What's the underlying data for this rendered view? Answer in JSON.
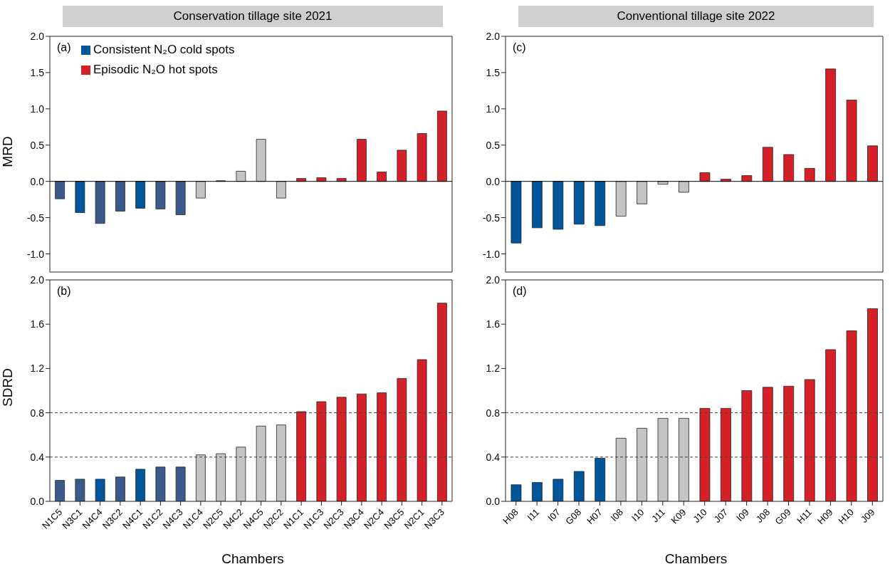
{
  "chart_data": [
    {
      "type": "bar",
      "title": "Conservation tillage site 2021",
      "ylabel": "MRD",
      "annotations": [
        "(a)"
      ],
      "legend": "top left",
      "stacked": true,
      "tick_labels": "y",
      "categories": [
        null,
        null,
        null,
        null,
        null,
        null,
        null,
        null,
        null,
        null,
        null,
        null,
        null,
        null,
        null,
        null,
        null,
        null,
        null,
        null
      ],
      "ylim": [
        -1.25,
        2.0
      ],
      "yticks": [
        {
          "value": -1,
          "label": "-1.0"
        },
        -0.5,
        {
          "value": 0,
          "label": "0.0"
        },
        0.5,
        {
          "value": 1,
          "label": "1.0"
        },
        1.5,
        {
          "value": 2,
          "label": "2.0"
        }
      ],
      "series": [
        {
          "name": "Consistent N₂O cold spots",
          "color": "#00559b",
          "colors": [
            "#3b5a8c",
            "#00559b",
            "#3b5a8c",
            "#3b5a8c",
            "#00559b",
            "#3b5a8c",
            "#3b5a8c",
            null,
            null,
            null,
            null,
            null,
            null,
            null,
            null,
            null,
            null,
            null,
            null,
            null
          ],
          "values": [
            -0.24,
            -0.43,
            -0.58,
            -0.41,
            -0.37,
            -0.38,
            -0.46,
            null,
            null,
            null,
            null,
            null,
            null,
            null,
            null,
            null,
            null,
            null,
            null,
            null
          ]
        },
        {
          "color": "#c4c4c4",
          "values": [
            null,
            null,
            null,
            null,
            null,
            null,
            null,
            -0.23,
            0.01,
            0.14,
            0.58,
            -0.23,
            null,
            null,
            null,
            null,
            null,
            null,
            null,
            null
          ]
        },
        {
          "name": "Episodic N₂O hot spots",
          "color": "#d62027",
          "values": [
            null,
            null,
            null,
            null,
            null,
            null,
            null,
            null,
            null,
            null,
            null,
            null,
            0.04,
            0.05,
            0.04,
            0.58,
            0.13,
            0.43,
            0.66,
            0.97
          ]
        }
      ]
    },
    {
      "type": "bar",
      "xlabel": "Chambers",
      "ylabel": "SDRD",
      "annotations": [
        "(b)"
      ],
      "stacked": true,
      "categories": [
        "N1C5",
        "N3C1",
        "N4C4",
        "N3C2",
        "N4C1",
        "N1C2",
        "N4C3",
        "N1C4",
        "N2C5",
        "N4C2",
        "N4C5",
        "N2C2",
        "N1C1",
        "N1C3",
        "N2C3",
        "N3C4",
        "N2C4",
        "N3C5",
        "N2C1",
        "N3C3"
      ],
      "ylim": [
        0,
        2.0
      ],
      "yticks": [
        {
          "value": 0,
          "label": "0.0"
        },
        0.4,
        0.8,
        1.2,
        1.6,
        {
          "value": 2,
          "label": "2.0"
        }
      ],
      "ref_lines": [
        {
          "axis": "y",
          "value": 0.4,
          "line_style": "dashed",
          "color": "#444444"
        },
        {
          "axis": "y",
          "value": 0.8,
          "line_style": "dashed",
          "color": "#444444"
        }
      ],
      "series": [
        {
          "color": "#3b5a8c",
          "colors": [
            "#3b5a8c",
            "#3b5a8c",
            "#00559b",
            "#3b5a8c",
            "#00559b",
            "#3b5a8c",
            "#3b5a8c",
            null,
            null,
            null,
            null,
            null,
            null,
            null,
            null,
            null,
            null,
            null,
            null,
            null
          ],
          "values": [
            0.19,
            0.2,
            0.2,
            0.22,
            0.29,
            0.31,
            0.31,
            null,
            null,
            null,
            null,
            null,
            null,
            null,
            null,
            null,
            null,
            null,
            null,
            null
          ]
        },
        {
          "color": "#c4c4c4",
          "values": [
            null,
            null,
            null,
            null,
            null,
            null,
            null,
            0.42,
            0.43,
            0.49,
            0.68,
            0.69,
            null,
            null,
            null,
            null,
            null,
            null,
            null,
            null
          ]
        },
        {
          "color": "#d62027",
          "values": [
            null,
            null,
            null,
            null,
            null,
            null,
            null,
            null,
            null,
            null,
            null,
            null,
            0.81,
            0.9,
            0.94,
            0.97,
            0.98,
            1.11,
            1.28,
            1.79
          ]
        }
      ]
    },
    {
      "type": "bar",
      "title": "Conventional tillage site 2022",
      "annotations": [
        "(c)"
      ],
      "stacked": true,
      "tick_labels": "y",
      "categories": [
        null,
        null,
        null,
        null,
        null,
        null,
        null,
        null,
        null,
        null,
        null,
        null,
        null,
        null,
        null,
        null,
        null,
        null
      ],
      "ylim": [
        -1.25,
        2.0
      ],
      "yticks": [
        {
          "value": -1,
          "label": "-1.0"
        },
        -0.5,
        {
          "value": 0,
          "label": "0.0"
        },
        0.5,
        {
          "value": 1,
          "label": "1.0"
        },
        1.5,
        {
          "value": 2,
          "label": "2.0"
        }
      ],
      "series": [
        {
          "color": "#00559b",
          "values": [
            -0.85,
            -0.64,
            -0.66,
            -0.59,
            -0.61,
            null,
            null,
            null,
            null,
            null,
            null,
            null,
            null,
            null,
            null,
            null,
            null,
            null
          ]
        },
        {
          "color": "#c4c4c4",
          "values": [
            null,
            null,
            null,
            null,
            null,
            -0.48,
            -0.31,
            -0.04,
            -0.15,
            null,
            null,
            null,
            null,
            null,
            null,
            null,
            null,
            null
          ]
        },
        {
          "color": "#d62027",
          "values": [
            null,
            null,
            null,
            null,
            null,
            null,
            null,
            null,
            null,
            0.12,
            0.03,
            0.08,
            0.47,
            0.37,
            0.18,
            1.55,
            1.12,
            0.49
          ]
        }
      ]
    },
    {
      "type": "bar",
      "xlabel": "Chambers",
      "annotations": [
        "(d)"
      ],
      "stacked": true,
      "categories": [
        "H08",
        "I11",
        "I07",
        "G08",
        "H07",
        "I08",
        "I10",
        "J11",
        "K09",
        "J10",
        "J07",
        "I09",
        "J08",
        "G09",
        "H11",
        "H09",
        "H10",
        "J09"
      ],
      "ylim": [
        0,
        2.0
      ],
      "yticks": [
        {
          "value": 0,
          "label": "0.0"
        },
        0.4,
        0.8,
        1.2,
        1.6,
        {
          "value": 2,
          "label": "2.0"
        }
      ],
      "ref_lines": [
        {
          "axis": "y",
          "value": 0.4,
          "line_style": "dashed",
          "color": "#444444"
        },
        {
          "axis": "y",
          "value": 0.8,
          "line_style": "dashed",
          "color": "#444444"
        }
      ],
      "series": [
        {
          "color": "#00559b",
          "values": [
            0.15,
            0.17,
            0.2,
            0.27,
            0.39,
            null,
            null,
            null,
            null,
            null,
            null,
            null,
            null,
            null,
            null,
            null,
            null,
            null
          ]
        },
        {
          "color": "#c4c4c4",
          "values": [
            null,
            null,
            null,
            null,
            null,
            0.57,
            0.66,
            0.75,
            0.75,
            null,
            null,
            null,
            null,
            null,
            null,
            null,
            null,
            null
          ]
        },
        {
          "color": "#d62027",
          "values": [
            null,
            null,
            null,
            null,
            null,
            null,
            null,
            null,
            null,
            0.84,
            0.84,
            1.0,
            1.03,
            1.04,
            1.1,
            1.37,
            1.54,
            1.74
          ]
        }
      ]
    }
  ]
}
